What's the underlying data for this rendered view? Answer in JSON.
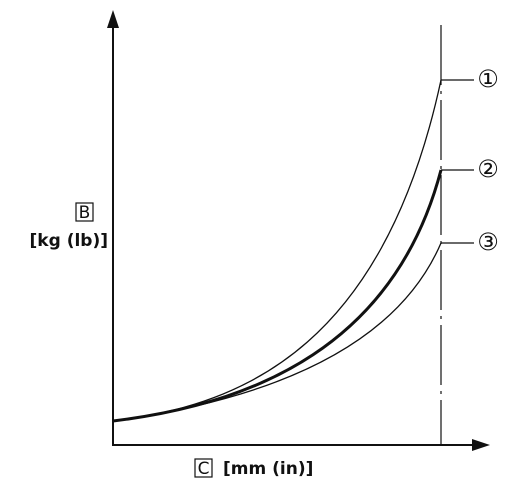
{
  "axes": {
    "y_label_box": "B",
    "y_label_unit": "[kg (lb)]",
    "x_label_box": "C",
    "x_label_unit": "[mm (in)]"
  },
  "curves": [
    {
      "label": "①"
    },
    {
      "label": "②"
    },
    {
      "label": "③"
    }
  ]
}
